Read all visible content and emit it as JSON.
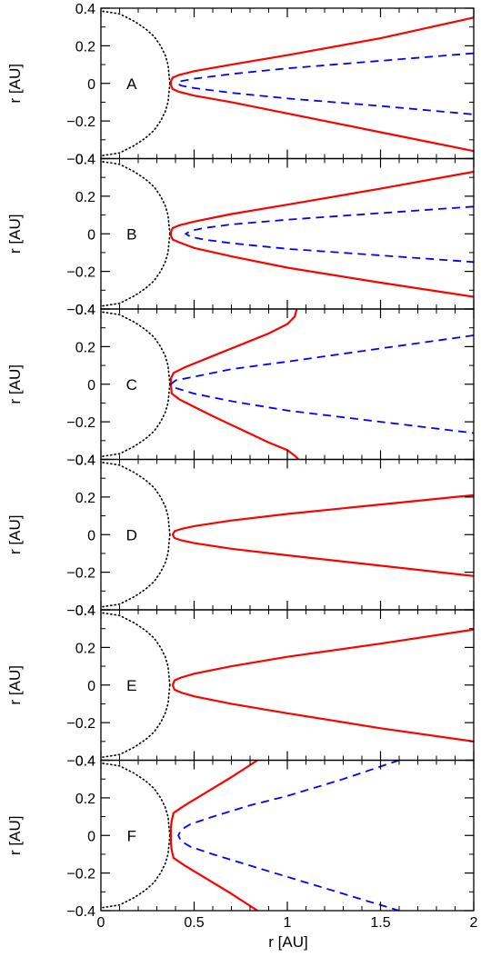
{
  "figure": {
    "xlabel": "r [AU]",
    "ylabel": "r [AU]"
  },
  "colors": {
    "solid": "#ff0000",
    "dashed": "#0000ff",
    "dotted": "#000000",
    "axes": "#000000"
  },
  "axes_common": {
    "xlim": [
      0,
      2
    ],
    "ylim": [
      -0.4,
      0.4
    ],
    "x_ticks": [
      0,
      0.5,
      1,
      1.5,
      2
    ],
    "x_tick_labels": [
      "0",
      "0.5",
      "1",
      "1.5",
      "2"
    ],
    "y_ticks": [
      -0.4,
      -0.2,
      0,
      0.2,
      0.4
    ],
    "y_tick_labels": [
      "−0.4",
      "−0.2",
      "0",
      "0.2",
      "0.4"
    ],
    "grid": false
  },
  "chart_data": [
    {
      "type": "line",
      "panel_label": "A",
      "series": [
        {
          "style": "dotted",
          "x": [
            0.37,
            0.36,
            0.345,
            0.32,
            0.285,
            0.24,
            0.18,
            0.1,
            0.0
          ],
          "y": [
            0.0,
            0.1,
            0.15,
            0.2,
            0.25,
            0.29,
            0.33,
            0.37,
            0.385
          ]
        },
        {
          "style": "dotted",
          "x": [
            0.37,
            0.36,
            0.345,
            0.32,
            0.285,
            0.24,
            0.18,
            0.1,
            0.0
          ],
          "y": [
            0.0,
            -0.1,
            -0.15,
            -0.2,
            -0.25,
            -0.29,
            -0.33,
            -0.37,
            -0.385
          ]
        },
        {
          "style": "solid",
          "x": [
            2.0,
            1.5,
            1.0,
            0.7,
            0.5,
            0.42,
            0.385,
            0.375,
            0.375,
            0.385,
            0.42,
            0.5,
            0.7,
            1.0,
            1.5,
            2.0
          ],
          "y": [
            0.35,
            0.24,
            0.15,
            0.1,
            0.065,
            0.045,
            0.03,
            0.01,
            -0.01,
            -0.03,
            -0.045,
            -0.065,
            -0.1,
            -0.16,
            -0.26,
            -0.36
          ]
        },
        {
          "style": "dashed",
          "x": [
            2.0,
            1.5,
            1.0,
            0.7,
            0.5,
            0.43,
            0.41,
            0.43,
            0.5,
            0.7,
            1.0,
            1.5,
            2.0
          ],
          "y": [
            0.16,
            0.12,
            0.08,
            0.05,
            0.025,
            0.012,
            0.0,
            -0.012,
            -0.025,
            -0.05,
            -0.08,
            -0.12,
            -0.165
          ]
        }
      ]
    },
    {
      "type": "line",
      "panel_label": "B",
      "series": [
        {
          "style": "dotted",
          "x": [
            0.37,
            0.36,
            0.345,
            0.32,
            0.285,
            0.24,
            0.18,
            0.1,
            0.0
          ],
          "y": [
            0.0,
            0.1,
            0.15,
            0.2,
            0.25,
            0.29,
            0.33,
            0.37,
            0.385
          ]
        },
        {
          "style": "dotted",
          "x": [
            0.37,
            0.36,
            0.345,
            0.32,
            0.285,
            0.24,
            0.18,
            0.1,
            0.0
          ],
          "y": [
            0.0,
            -0.1,
            -0.15,
            -0.2,
            -0.25,
            -0.29,
            -0.33,
            -0.37,
            -0.385
          ]
        },
        {
          "style": "solid",
          "x": [
            2.0,
            1.5,
            1.0,
            0.7,
            0.5,
            0.42,
            0.385,
            0.375,
            0.375,
            0.385,
            0.42,
            0.5,
            0.7,
            1.0,
            1.5,
            2.0
          ],
          "y": [
            0.33,
            0.24,
            0.155,
            0.105,
            0.065,
            0.045,
            0.03,
            0.01,
            -0.01,
            -0.03,
            -0.045,
            -0.075,
            -0.12,
            -0.18,
            -0.26,
            -0.335
          ]
        },
        {
          "style": "dashed",
          "x": [
            2.0,
            1.5,
            1.0,
            0.7,
            0.55,
            0.48,
            0.455,
            0.48,
            0.55,
            0.7,
            1.0,
            1.5,
            2.0
          ],
          "y": [
            0.145,
            0.11,
            0.075,
            0.05,
            0.03,
            0.015,
            0.0,
            -0.015,
            -0.03,
            -0.05,
            -0.08,
            -0.115,
            -0.15
          ]
        }
      ]
    },
    {
      "type": "line",
      "panel_label": "C",
      "series": [
        {
          "style": "dotted",
          "x": [
            0.37,
            0.36,
            0.345,
            0.32,
            0.285,
            0.24,
            0.18,
            0.1,
            0.0
          ],
          "y": [
            0.0,
            0.1,
            0.15,
            0.2,
            0.25,
            0.29,
            0.33,
            0.37,
            0.385
          ]
        },
        {
          "style": "dotted",
          "x": [
            0.37,
            0.36,
            0.345,
            0.32,
            0.285,
            0.24,
            0.18,
            0.1,
            0.0
          ],
          "y": [
            0.0,
            -0.1,
            -0.15,
            -0.2,
            -0.25,
            -0.29,
            -0.33,
            -0.37,
            -0.385
          ]
        },
        {
          "style": "solid",
          "x": [
            1.05,
            1.04,
            1.0,
            0.9,
            0.75,
            0.6,
            0.45,
            0.39,
            0.375,
            0.375
          ],
          "y": [
            0.4,
            0.36,
            0.32,
            0.27,
            0.21,
            0.15,
            0.09,
            0.06,
            0.03,
            0.0
          ]
        },
        {
          "style": "solid",
          "x": [
            0.375,
            0.38,
            0.42,
            0.5,
            0.6,
            0.75,
            0.9,
            1.0,
            1.04,
            1.06
          ],
          "y": [
            0.0,
            -0.05,
            -0.08,
            -0.12,
            -0.17,
            -0.24,
            -0.31,
            -0.35,
            -0.38,
            -0.4
          ]
        },
        {
          "style": "dashed",
          "x": [
            2.0,
            1.5,
            1.0,
            0.7,
            0.5,
            0.4,
            0.375,
            0.4,
            0.5,
            0.7,
            1.0,
            1.5,
            2.0
          ],
          "y": [
            0.26,
            0.19,
            0.12,
            0.08,
            0.04,
            0.02,
            0.0,
            -0.02,
            -0.05,
            -0.09,
            -0.14,
            -0.2,
            -0.26
          ]
        }
      ]
    },
    {
      "type": "line",
      "panel_label": "D",
      "series": [
        {
          "style": "dotted",
          "x": [
            0.37,
            0.36,
            0.345,
            0.32,
            0.285,
            0.24,
            0.18,
            0.1,
            0.0
          ],
          "y": [
            0.0,
            0.1,
            0.15,
            0.2,
            0.25,
            0.29,
            0.33,
            0.37,
            0.385
          ]
        },
        {
          "style": "dotted",
          "x": [
            0.37,
            0.36,
            0.345,
            0.32,
            0.285,
            0.24,
            0.18,
            0.1,
            0.0
          ],
          "y": [
            0.0,
            -0.1,
            -0.15,
            -0.2,
            -0.25,
            -0.29,
            -0.33,
            -0.37,
            -0.385
          ]
        },
        {
          "style": "solid",
          "x": [
            2.0,
            1.5,
            1.0,
            0.7,
            0.5,
            0.43,
            0.395,
            0.385,
            0.395,
            0.43,
            0.5,
            0.7,
            1.0,
            1.5,
            2.0
          ],
          "y": [
            0.21,
            0.16,
            0.11,
            0.075,
            0.045,
            0.03,
            0.018,
            0.0,
            -0.018,
            -0.03,
            -0.045,
            -0.075,
            -0.11,
            -0.165,
            -0.22
          ]
        }
      ]
    },
    {
      "type": "line",
      "panel_label": "E",
      "series": [
        {
          "style": "dotted",
          "x": [
            0.37,
            0.36,
            0.345,
            0.32,
            0.285,
            0.24,
            0.18,
            0.1,
            0.0
          ],
          "y": [
            0.0,
            0.1,
            0.15,
            0.2,
            0.25,
            0.29,
            0.33,
            0.37,
            0.385
          ]
        },
        {
          "style": "dotted",
          "x": [
            0.37,
            0.36,
            0.345,
            0.32,
            0.285,
            0.24,
            0.18,
            0.1,
            0.0
          ],
          "y": [
            0.0,
            -0.1,
            -0.15,
            -0.2,
            -0.25,
            -0.29,
            -0.33,
            -0.37,
            -0.385
          ]
        },
        {
          "style": "solid",
          "x": [
            2.0,
            1.5,
            1.0,
            0.7,
            0.5,
            0.43,
            0.395,
            0.385,
            0.395,
            0.43,
            0.5,
            0.7,
            1.0,
            1.5,
            2.0
          ],
          "y": [
            0.295,
            0.22,
            0.15,
            0.1,
            0.06,
            0.04,
            0.025,
            0.0,
            -0.025,
            -0.04,
            -0.06,
            -0.1,
            -0.15,
            -0.23,
            -0.3
          ]
        }
      ]
    },
    {
      "type": "line",
      "panel_label": "F",
      "series": [
        {
          "style": "dotted",
          "x": [
            0.37,
            0.36,
            0.345,
            0.32,
            0.285,
            0.24,
            0.18,
            0.1,
            0.0
          ],
          "y": [
            0.0,
            0.1,
            0.15,
            0.2,
            0.25,
            0.29,
            0.33,
            0.37,
            0.385
          ]
        },
        {
          "style": "dotted",
          "x": [
            0.37,
            0.36,
            0.345,
            0.32,
            0.285,
            0.24,
            0.18,
            0.1,
            0.0
          ],
          "y": [
            0.0,
            -0.1,
            -0.15,
            -0.2,
            -0.25,
            -0.29,
            -0.33,
            -0.37,
            -0.385
          ]
        },
        {
          "style": "solid",
          "x": [
            0.84,
            0.7,
            0.55,
            0.45,
            0.39,
            0.38,
            0.375,
            0.375,
            0.38,
            0.39,
            0.45,
            0.55,
            0.7,
            0.84
          ],
          "y": [
            0.4,
            0.31,
            0.22,
            0.16,
            0.12,
            0.08,
            0.04,
            -0.04,
            -0.08,
            -0.12,
            -0.16,
            -0.22,
            -0.31,
            -0.4
          ]
        },
        {
          "style": "dashed",
          "x": [
            1.6,
            1.3,
            1.0,
            0.8,
            0.6,
            0.48,
            0.43,
            0.415,
            0.43,
            0.48,
            0.6,
            0.8,
            1.0,
            1.3,
            1.6
          ],
          "y": [
            0.4,
            0.3,
            0.21,
            0.16,
            0.1,
            0.06,
            0.03,
            0.0,
            -0.03,
            -0.06,
            -0.1,
            -0.16,
            -0.22,
            -0.31,
            -0.4
          ]
        }
      ]
    }
  ]
}
